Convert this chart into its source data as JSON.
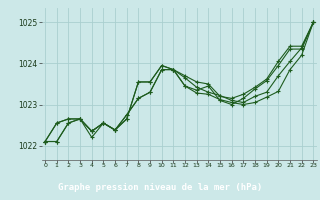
{
  "title": "Graphe pression niveau de la mer (hPa)",
  "background_color": "#cce8e8",
  "label_bg_color": "#2d6e2d",
  "label_text_color": "#ffffff",
  "grid_color": "#aacfcf",
  "line_color": "#1e5c1e",
  "x_ticks": [
    0,
    1,
    2,
    3,
    4,
    5,
    6,
    7,
    8,
    9,
    10,
    11,
    12,
    13,
    14,
    15,
    16,
    17,
    18,
    19,
    20,
    21,
    22,
    23
  ],
  "y_ticks": [
    1022,
    1023,
    1024,
    1025
  ],
  "ylim": [
    1021.65,
    1025.35
  ],
  "xlim": [
    -0.3,
    23.3
  ],
  "lines": [
    {
      "x": [
        0,
        1,
        2,
        3,
        4,
        5,
        6,
        7,
        8,
        9,
        10,
        11,
        12,
        13,
        14,
        15,
        16,
        17,
        18,
        19,
        20,
        21,
        22,
        23
      ],
      "y": [
        1022.1,
        1022.55,
        1022.65,
        1022.65,
        1022.35,
        1022.55,
        1022.38,
        1022.75,
        1023.15,
        1023.3,
        1023.85,
        1023.85,
        1023.65,
        1023.42,
        1023.3,
        1023.22,
        1023.1,
        1023.05,
        1023.2,
        1023.3,
        1023.7,
        1024.05,
        1024.38,
        1025.0
      ]
    },
    {
      "x": [
        0,
        1,
        2,
        3,
        4,
        5,
        6,
        7,
        8,
        9,
        10,
        11,
        12,
        13,
        14,
        15,
        16,
        17,
        18,
        19,
        20,
        21,
        22,
        23
      ],
      "y": [
        1022.1,
        1022.55,
        1022.65,
        1022.65,
        1022.35,
        1022.55,
        1022.38,
        1022.75,
        1023.15,
        1023.3,
        1023.85,
        1023.85,
        1023.45,
        1023.28,
        1023.25,
        1023.12,
        1023.05,
        1023.0,
        1023.05,
        1023.18,
        1023.32,
        1023.85,
        1024.2,
        1025.0
      ]
    },
    {
      "x": [
        0,
        1,
        2,
        3,
        4,
        5,
        6,
        7,
        8,
        9,
        10,
        11,
        12,
        13,
        14,
        15,
        16,
        17,
        18,
        19,
        20,
        21,
        22,
        23
      ],
      "y": [
        1022.1,
        1022.1,
        1022.55,
        1022.65,
        1022.35,
        1022.55,
        1022.38,
        1022.65,
        1023.55,
        1023.55,
        1023.95,
        1023.85,
        1023.7,
        1023.55,
        1023.5,
        1023.2,
        1023.15,
        1023.25,
        1023.42,
        1023.62,
        1024.05,
        1024.42,
        1024.42,
        1025.0
      ]
    },
    {
      "x": [
        0,
        1,
        2,
        3,
        4,
        5,
        6,
        7,
        8,
        9,
        10,
        11,
        12,
        13,
        14,
        15,
        16,
        17,
        18,
        19,
        20,
        21,
        22,
        23
      ],
      "y": [
        1022.1,
        1022.1,
        1022.55,
        1022.65,
        1022.2,
        1022.55,
        1022.38,
        1022.65,
        1023.55,
        1023.55,
        1023.95,
        1023.85,
        1023.45,
        1023.35,
        1023.45,
        1023.1,
        1023.0,
        1023.15,
        1023.38,
        1023.58,
        1023.95,
        1024.35,
        1024.35,
        1025.0
      ]
    }
  ]
}
